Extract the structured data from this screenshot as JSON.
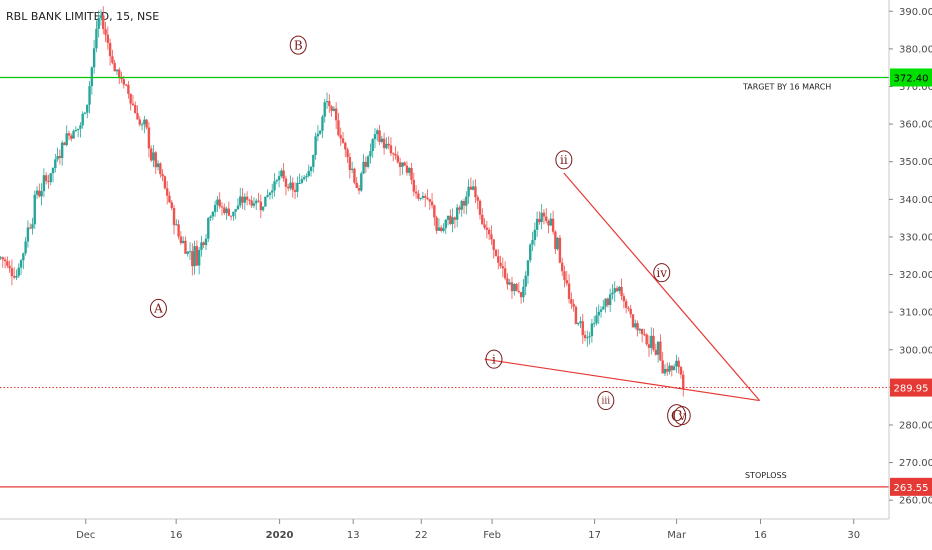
{
  "chart_data": {
    "type": "candlestick",
    "title": "RBL BANK LIMITED, 15, NSE",
    "ylim": [
      255,
      393
    ],
    "y_ticks": [
      "260.00",
      "270.00",
      "280.00",
      "290.00",
      "300.00",
      "310.00",
      "320.00",
      "330.00",
      "340.00",
      "350.00",
      "360.00",
      "370.00",
      "380.00",
      "390.00"
    ],
    "x_ticks": [
      "Dec",
      "16",
      "2020",
      "13",
      "22",
      "Feb",
      "17",
      "Mar",
      "16",
      "30"
    ],
    "price_path": [
      [
        320,
        329
      ],
      [
        322,
        318
      ],
      [
        330,
        352
      ],
      [
        350,
        343
      ],
      [
        356,
        360
      ],
      [
        370,
        350
      ],
      [
        392,
        388
      ],
      [
        378,
        370
      ],
      [
        368,
        365
      ],
      [
        364,
        345
      ],
      [
        336,
        348
      ],
      [
        325,
        333
      ],
      [
        313,
        337
      ],
      [
        342,
        338
      ],
      [
        336,
        336
      ],
      [
        345,
        335
      ],
      [
        338,
        340
      ],
      [
        350,
        343
      ],
      [
        345,
        337
      ],
      [
        352,
        350
      ],
      [
        374,
        357
      ],
      [
        355,
        355
      ],
      [
        357,
        330
      ],
      [
        355,
        360
      ],
      [
        354,
        350
      ],
      [
        352,
        339
      ],
      [
        345,
        336
      ],
      [
        322,
        340
      ],
      [
        335,
        338
      ],
      [
        345,
        342
      ],
      [
        332,
        326
      ],
      [
        320,
        316
      ],
      [
        312,
        317
      ],
      [
        332,
        342
      ],
      [
        345,
        322
      ],
      [
        315,
        306
      ],
      [
        308,
        299
      ],
      [
        310,
        314
      ],
      [
        318,
        314
      ],
      [
        306,
        306
      ],
      [
        307,
        297
      ],
      [
        305,
        286
      ],
      [
        300,
        286
      ]
    ],
    "levels": [
      {
        "name": "target",
        "value": 372.4,
        "label": "372.40",
        "note": "TARGET BY 16 MARCH",
        "color": "#00c800"
      },
      {
        "name": "current",
        "value": 289.95,
        "label": "289.95",
        "color": "#e53935"
      },
      {
        "name": "stoploss",
        "value": 263.55,
        "label": "263.55",
        "note": "STOPLOSS",
        "color": "#e53935"
      }
    ],
    "triangle_lines": [
      {
        "from": [
          0.52,
          297.5
        ],
        "to": [
          0.815,
          286.5
        ]
      },
      {
        "from": [
          0.605,
          347
        ],
        "to": [
          0.815,
          286.5
        ]
      }
    ],
    "wave_labels": [
      {
        "text": "A",
        "x_frac": 0.17,
        "value": 311
      },
      {
        "text": "B",
        "x_frac": 0.32,
        "value": 381
      },
      {
        "text": "i",
        "x_frac": 0.53,
        "value": 297.5
      },
      {
        "text": "ii",
        "x_frac": 0.605,
        "value": 350.5
      },
      {
        "text": "iii",
        "x_frac": 0.65,
        "value": 286.5
      },
      {
        "text": "iv",
        "x_frac": 0.71,
        "value": 320.5
      },
      {
        "text": "v",
        "x_frac": 0.732,
        "value": 282.5
      },
      {
        "text": "C",
        "x_frac": 0.726,
        "value": 282.5
      }
    ],
    "colors": {
      "up": "#26a69a",
      "down": "#ef5350",
      "wave": "#7a1a1a",
      "line": "#e53935"
    },
    "grid": false
  }
}
